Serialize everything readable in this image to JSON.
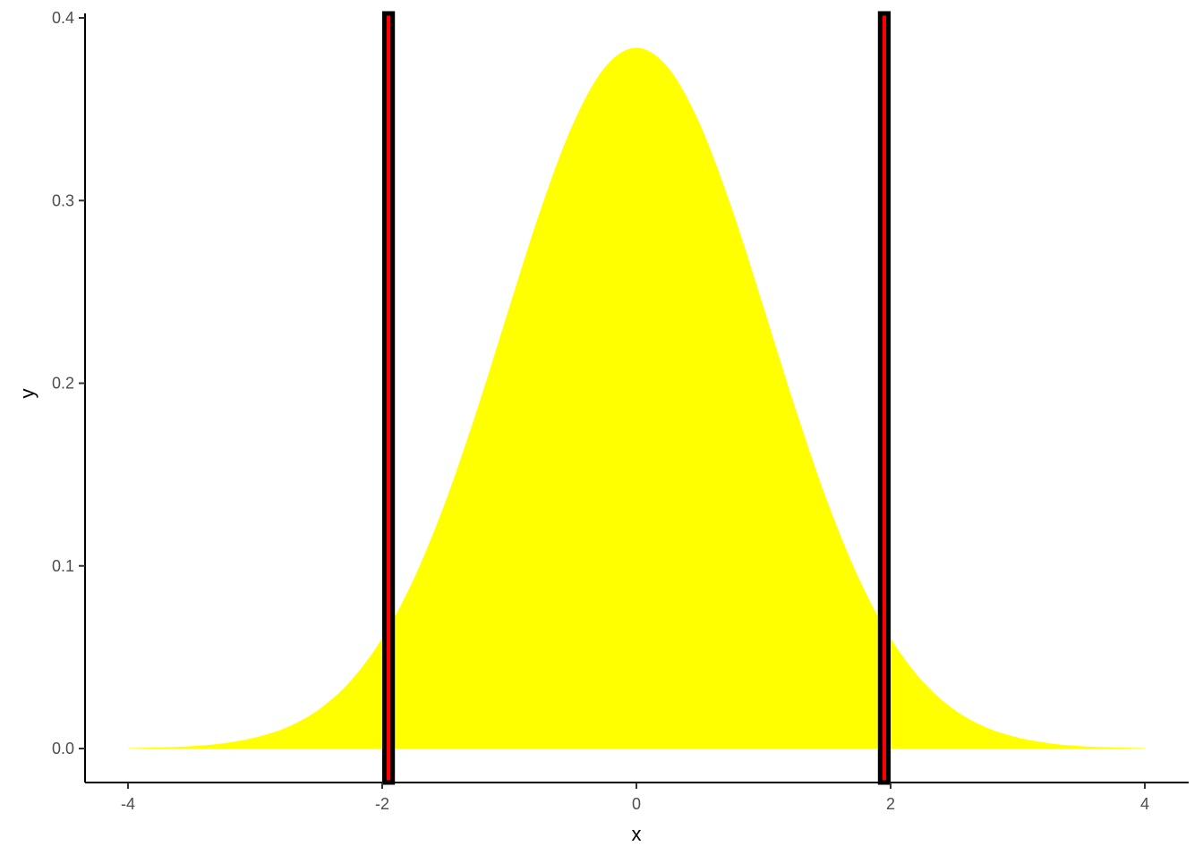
{
  "chart_data": {
    "type": "area",
    "title": "",
    "xlabel": "x",
    "ylabel": "y",
    "xlim": [
      -4.3,
      4.3
    ],
    "ylim": [
      -0.018,
      0.402
    ],
    "x_ticks": [
      "-4",
      "-2",
      "0",
      "2",
      "4"
    ],
    "x_tick_values": [
      -4,
      -2,
      0,
      2,
      4
    ],
    "y_ticks": [
      "0.0",
      "0.1",
      "0.2",
      "0.3",
      "0.4"
    ],
    "y_tick_values": [
      0,
      0.1,
      0.2,
      0.3,
      0.4
    ],
    "grid": false,
    "fill_color": "#FFFF00",
    "density": {
      "x": [
        -4,
        -3.75,
        -3.5,
        -3.25,
        -3,
        -2.75,
        -2.5,
        -2.25,
        -2,
        -1.75,
        -1.5,
        -1.25,
        -1,
        -0.75,
        -0.5,
        -0.25,
        0,
        0.25,
        0.5,
        0.75,
        1,
        1.25,
        1.5,
        1.75,
        2,
        2.25,
        2.5,
        2.75,
        3,
        3.25,
        3.5,
        3.75,
        4
      ],
      "y": [
        0.0002,
        0.0006,
        0.0013,
        0.0029,
        0.006,
        0.0116,
        0.0213,
        0.0369,
        0.0604,
        0.0931,
        0.1356,
        0.1863,
        0.2416,
        0.2958,
        0.3417,
        0.3727,
        0.3836,
        0.3727,
        0.3417,
        0.2958,
        0.2416,
        0.1863,
        0.1356,
        0.0931,
        0.0604,
        0.0369,
        0.0213,
        0.0116,
        0.006,
        0.0029,
        0.0013,
        0.0006,
        0.0002
      ]
    },
    "bands": [
      {
        "xmin": -2.0,
        "xmax": -1.9,
        "fill": "#FF0000",
        "border": "#000000"
      },
      {
        "xmin": 1.9,
        "xmax": 2.0,
        "fill": "#FF0000",
        "border": "#000000"
      }
    ]
  }
}
